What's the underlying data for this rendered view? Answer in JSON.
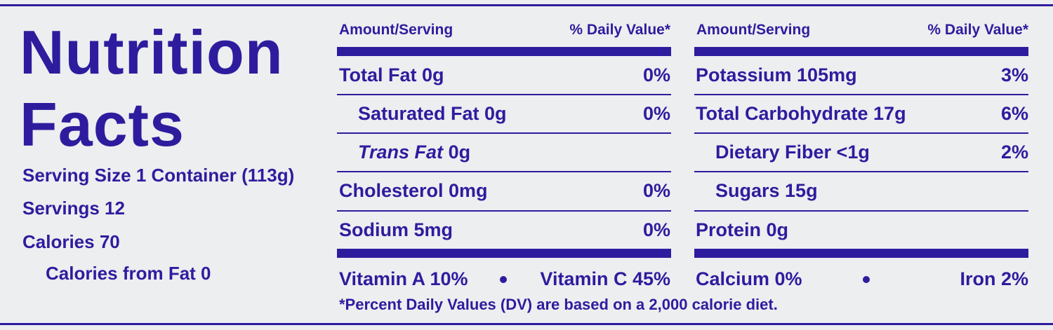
{
  "title": {
    "line1": "Nutrition",
    "line2": "Facts"
  },
  "serving": [
    "Serving Size 1 Container (113g)",
    "Servings 12",
    "Calories 70",
    "Calories from Fat 0"
  ],
  "columns": [
    {
      "header": {
        "amount": "Amount/Serving",
        "dv": "% Daily Value*"
      },
      "rows": [
        {
          "label": "Total Fat 0g",
          "dv": "0%"
        },
        {
          "label": "Saturated Fat 0g",
          "dv": "0%"
        },
        {
          "label_italic": "Trans Fat",
          "label": "0g"
        },
        {
          "label": "Cholesterol 0mg",
          "dv": "0%"
        },
        {
          "label": "Sodium 5mg",
          "dv": "0%"
        }
      ],
      "vitamins": [
        "Vitamin A 10%",
        "Vitamin C 45%"
      ]
    },
    {
      "header": {
        "amount": "Amount/Serving",
        "dv": "% Daily Value*"
      },
      "rows": [
        {
          "label": "Potassium 105mg",
          "dv": "3%"
        },
        {
          "label": "Total Carbohydrate 17g",
          "dv": "6%"
        },
        {
          "label": "Dietary Fiber <1g",
          "dv": "2%"
        },
        {
          "label": "Sugars 15g"
        },
        {
          "label": "Protein 0g"
        }
      ],
      "vitamins": [
        "Calcium 0%",
        "Iron 2%"
      ]
    }
  ],
  "footnote": "*Percent Daily Values (DV) are based on a 2,000 calorie diet."
}
